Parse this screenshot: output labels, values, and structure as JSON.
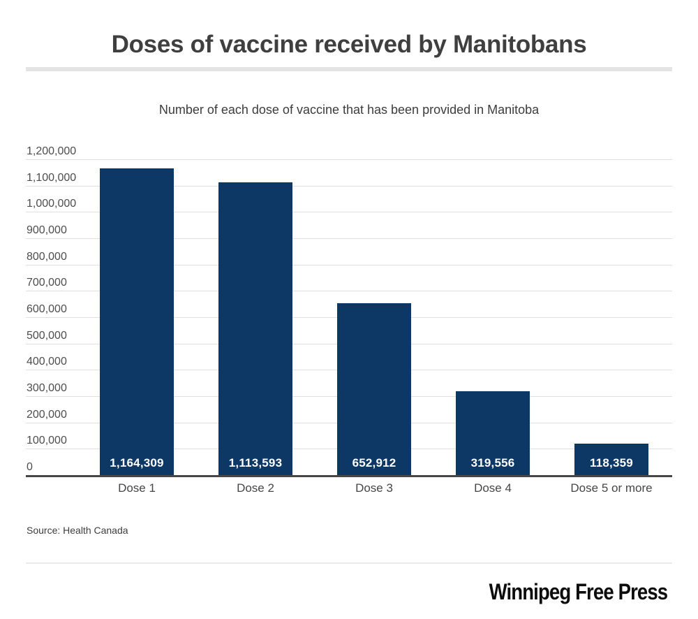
{
  "header": {
    "title": "Doses of vaccine received by Manitobans"
  },
  "subtitle": "Number of each dose of vaccine that has been provided in Manitoba",
  "chart_data": {
    "type": "bar",
    "title": "Doses of vaccine received by Manitobans",
    "subtitle": "Number of each dose of vaccine that has been provided in Manitoba",
    "categories": [
      "Dose 1",
      "Dose 2",
      "Dose 3",
      "Dose 4",
      "Dose 5 or more"
    ],
    "values": [
      1164309,
      1113593,
      652912,
      319556,
      118359
    ],
    "value_labels": [
      "1,164,309",
      "1,113,593",
      "652,912",
      "319,556",
      "118,359"
    ],
    "xlabel": "",
    "ylabel": "",
    "ylim": [
      0,
      1200000
    ],
    "ytick_step": 100000,
    "ytick_labels": [
      "1,200,000",
      "1,100,000",
      "1,000,000",
      "900,000",
      "800,000",
      "700,000",
      "600,000",
      "500,000",
      "400,000",
      "300,000",
      "200,000",
      "100,000",
      "0"
    ],
    "grid": true,
    "legend": "none",
    "bar_color": "#0d3866",
    "grid_color": "#e0e0e0",
    "axis_line_color": "#474747",
    "value_label_color": "#ffffff"
  },
  "footer": {
    "source": "Source: Health Canada",
    "brand": "Winnipeg Free Press"
  }
}
